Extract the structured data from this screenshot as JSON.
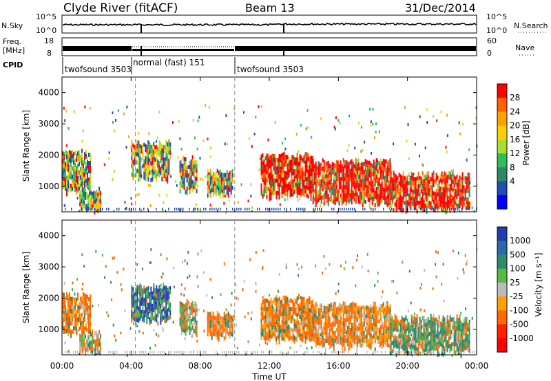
{
  "header": {
    "radar": "Clyde River (fitACF)",
    "beam": "Beam 13",
    "date": "31/Dec/2014"
  },
  "strip": {
    "nsky_label": "N.Sky",
    "nsky_ticks": [
      "10^5",
      "10^0"
    ],
    "nsearch_label": "N.Search",
    "freq_label_1": "Freq.",
    "freq_label_2": "[MHz]",
    "freq_ticks": [
      "18",
      "8"
    ],
    "nave_ticks": [
      "60",
      "0"
    ],
    "nave_label": "Nave",
    "cpid_label": "CPID",
    "cpid_segments": [
      {
        "name": "twofsound 3503",
        "start_h": 0,
        "end_h": 4.25
      },
      {
        "name": "normal (fast) 151",
        "start_h": 4.25,
        "end_h": 10.0
      },
      {
        "name": "twofsound 3503",
        "start_h": 10.0,
        "end_h": 24
      }
    ]
  },
  "chart_data": [
    {
      "type": "heatmap",
      "parameter": "Power",
      "ylabel": "Slant Range [km]",
      "ylim": [
        180,
        4500
      ],
      "xlim_hours": [
        0,
        24
      ],
      "yticks": [
        1000,
        2000,
        3000,
        4000
      ],
      "colorbar": {
        "label": "Power [dB]",
        "ticks": [
          "28",
          "24",
          "20",
          "16",
          "12",
          "8",
          "4"
        ],
        "colors": [
          "#ff0000",
          "#ff6400",
          "#ffa000",
          "#ffd000",
          "#aadd33",
          "#33bb55",
          "#2a8a66",
          "#1f4fb0",
          "#0000ff"
        ]
      },
      "regions": [
        {
          "t0": 0.0,
          "t1": 1.6,
          "r0": 900,
          "r1": 2100,
          "level": "mid"
        },
        {
          "t0": 1.0,
          "t1": 2.2,
          "r0": 300,
          "r1": 900,
          "level": "mid"
        },
        {
          "t0": 4.0,
          "t1": 6.3,
          "r0": 1300,
          "r1": 2400,
          "level": "mid"
        },
        {
          "t0": 6.8,
          "t1": 7.8,
          "r0": 900,
          "r1": 1900,
          "level": "mid"
        },
        {
          "t0": 8.4,
          "t1": 9.9,
          "r0": 800,
          "r1": 1500,
          "level": "mid"
        },
        {
          "t0": 11.5,
          "t1": 14.5,
          "r0": 700,
          "r1": 2000,
          "level": "high"
        },
        {
          "t0": 14.5,
          "t1": 19.0,
          "r0": 500,
          "r1": 1800,
          "level": "high"
        },
        {
          "t0": 19.0,
          "t1": 23.6,
          "r0": 300,
          "r1": 1400,
          "level": "high"
        }
      ]
    },
    {
      "type": "heatmap",
      "parameter": "Velocity",
      "ylabel": "Slant Range [km]",
      "ylim": [
        180,
        4500
      ],
      "xlim_hours": [
        0,
        24
      ],
      "yticks": [
        1000,
        2000,
        3000,
        4000
      ],
      "colorbar": {
        "label": "Velocity [m s⁻¹]",
        "ticks": [
          "1000",
          "500",
          "100",
          "25",
          "-25",
          "-100",
          "-500",
          "-1000"
        ],
        "colors": [
          "#1f3fb0",
          "#2a6aa8",
          "#2e8a6a",
          "#55bb44",
          "#bbbbbb",
          "#ffa000",
          "#ff6a00",
          "#ff2000",
          "#ff0000"
        ]
      },
      "regions": [
        {
          "t0": 0.0,
          "t1": 1.6,
          "r0": 900,
          "r1": 2100,
          "level": "neg"
        },
        {
          "t0": 1.0,
          "t1": 2.2,
          "r0": 300,
          "r1": 900,
          "level": "mix"
        },
        {
          "t0": 4.0,
          "t1": 6.3,
          "r0": 1300,
          "r1": 2400,
          "level": "pos"
        },
        {
          "t0": 6.8,
          "t1": 7.8,
          "r0": 900,
          "r1": 1900,
          "level": "mix"
        },
        {
          "t0": 8.4,
          "t1": 9.9,
          "r0": 800,
          "r1": 1500,
          "level": "neg"
        },
        {
          "t0": 11.5,
          "t1": 14.5,
          "r0": 700,
          "r1": 2000,
          "level": "neg"
        },
        {
          "t0": 14.5,
          "t1": 19.0,
          "r0": 500,
          "r1": 1800,
          "level": "neg"
        },
        {
          "t0": 19.0,
          "t1": 23.6,
          "r0": 300,
          "r1": 1400,
          "level": "mixpos"
        }
      ]
    }
  ],
  "xaxis": {
    "ticks": [
      "00:00",
      "04:00",
      "08:00",
      "12:00",
      "16:00",
      "20:00",
      "00:00"
    ],
    "label": "Time UT"
  }
}
